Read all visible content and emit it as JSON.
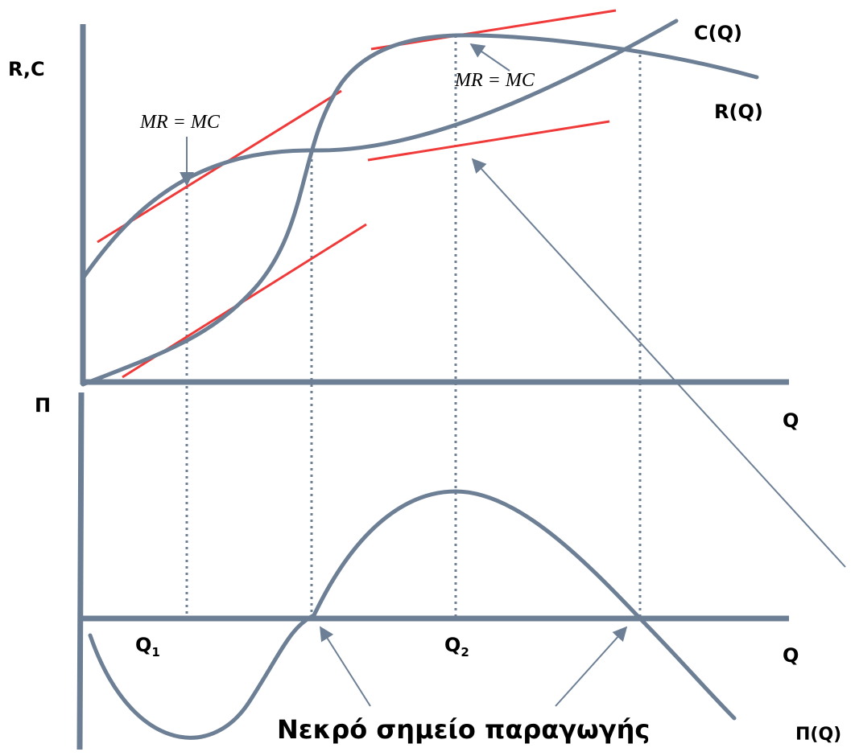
{
  "labels": {
    "rc_axis": "R,C",
    "q_axis_top": "Q",
    "pi_axis": "Π",
    "q_axis_bottom": "Q",
    "cost_curve": "C(Q)",
    "revenue_curve": "R(Q)",
    "profit_curve": "Π(Q)",
    "mr_mc_left": "MR = MC",
    "mr_mc_right": "MR = MC",
    "q1": "Q",
    "q1_sub": "1",
    "q2": "Q",
    "q2_sub": "2",
    "break_even": "Νεκρό σημείο παραγωγής"
  },
  "colors": {
    "curve": "#6d7f95",
    "tangent": "#f03a3a",
    "text": "#000000"
  }
}
